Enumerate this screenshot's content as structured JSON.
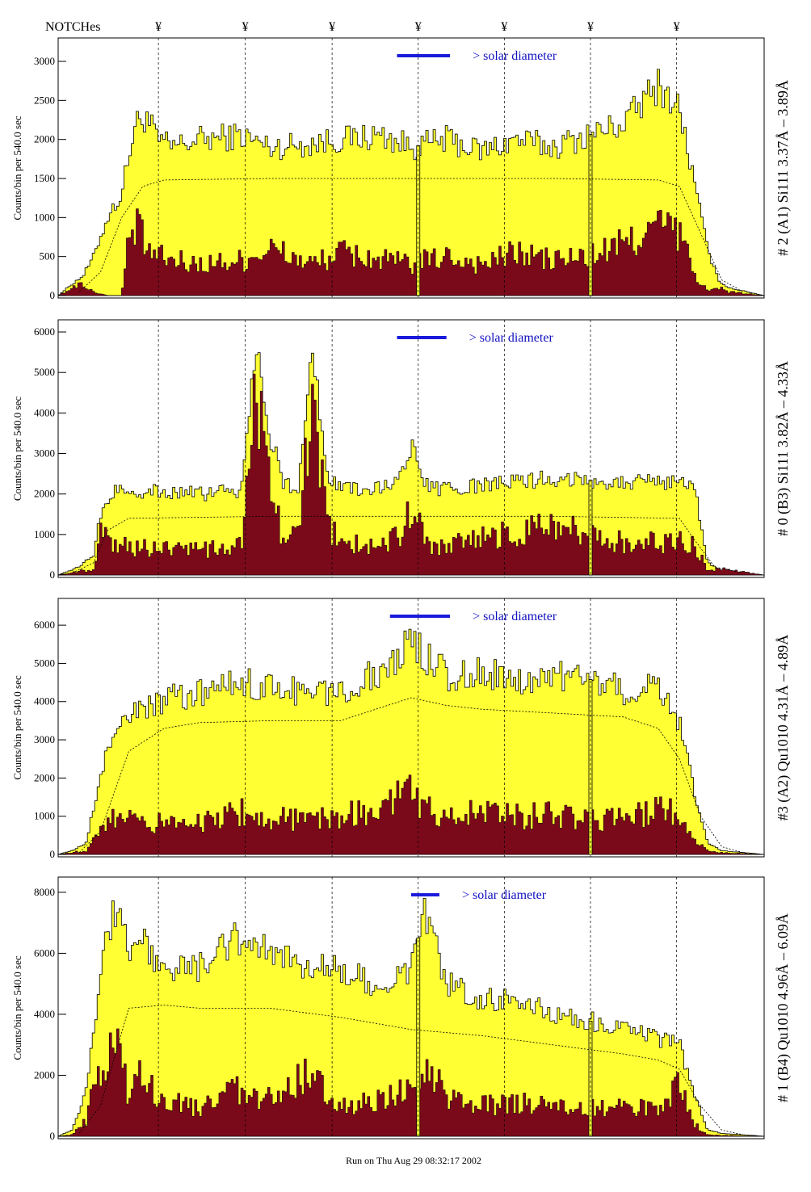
{
  "header": {
    "notches_label": "NOTCHes",
    "notch_glyph": "¥",
    "notch_x_fraction": [
      0.142,
      0.265,
      0.388,
      0.51,
      0.632,
      0.754,
      0.876
    ]
  },
  "footer": {
    "run_text": "Run on Thu Aug 29 08:32:17 2002"
  },
  "colors": {
    "total": "#ffff33",
    "dark": "#7a0a1a",
    "line": "#000000",
    "solar_bar": "#1a1adc",
    "solar_text": "#1010c0"
  },
  "chart_data": [
    {
      "type": "area",
      "panel": "A1",
      "right_label": "# 2 (A1) Si111  3.37Å – 3.89Å",
      "ylabel": "Counts/bin per    540.0 sec",
      "solar_label": "> solar diameter",
      "ylim": [
        0,
        3300
      ],
      "yticks": [
        0,
        500,
        1000,
        1500,
        2000,
        2500,
        3000
      ],
      "xlim": [
        0,
        1
      ],
      "solar_bar": [
        0.48,
        0.555
      ],
      "dip_x": [
        0.51,
        0.754
      ],
      "total": {
        "x": [
          0,
          0.02,
          0.035,
          0.05,
          0.07,
          0.09,
          0.1,
          0.11,
          0.125,
          0.14,
          0.16,
          0.2,
          0.26,
          0.3,
          0.36,
          0.4,
          0.46,
          0.5,
          0.55,
          0.6,
          0.65,
          0.7,
          0.75,
          0.8,
          0.85,
          0.88,
          0.9,
          0.92,
          0.935,
          0.95,
          1
        ],
        "y": [
          0,
          150,
          250,
          500,
          1000,
          1300,
          1800,
          2200,
          2300,
          2000,
          1900,
          2000,
          2050,
          1900,
          1950,
          2000,
          2050,
          1900,
          2000,
          1850,
          2000,
          1900,
          2050,
          2200,
          2700,
          2400,
          1500,
          600,
          200,
          100,
          0
        ]
      },
      "dark": {
        "x": [
          0,
          0.02,
          0.035,
          0.05,
          0.07,
          0.09,
          0.1,
          0.11,
          0.125,
          0.14,
          0.16,
          0.2,
          0.26,
          0.3,
          0.36,
          0.4,
          0.46,
          0.5,
          0.55,
          0.6,
          0.65,
          0.7,
          0.75,
          0.8,
          0.85,
          0.88,
          0.9,
          0.92,
          0.935,
          0.95,
          1
        ],
        "y": [
          0,
          100,
          150,
          50,
          0,
          0,
          700,
          900,
          600,
          500,
          450,
          400,
          450,
          600,
          400,
          550,
          450,
          400,
          500,
          400,
          550,
          450,
          500,
          650,
          900,
          800,
          300,
          50,
          100,
          50,
          0
        ]
      },
      "smooth": {
        "x": [
          0.03,
          0.06,
          0.09,
          0.12,
          0.15,
          0.3,
          0.5,
          0.7,
          0.85,
          0.88,
          0.91,
          0.94,
          0.97
        ],
        "y": [
          50,
          300,
          1000,
          1400,
          1480,
          1500,
          1500,
          1500,
          1480,
          1400,
          800,
          200,
          50
        ]
      }
    },
    {
      "type": "area",
      "panel": "B3",
      "right_label": "# 0 (B3) Si111  3.82Å – 4.33Å",
      "ylabel": "Counts/bin per    540.0 sec",
      "solar_label": "> solar diameter",
      "ylim": [
        0,
        6300
      ],
      "yticks": [
        0,
        1000,
        2000,
        3000,
        4000,
        5000,
        6000
      ],
      "xlim": [
        0,
        1
      ],
      "solar_bar": [
        0.48,
        0.55
      ],
      "dip_x": [
        0.754
      ],
      "total": {
        "x": [
          0,
          0.03,
          0.05,
          0.06,
          0.08,
          0.1,
          0.2,
          0.26,
          0.28,
          0.3,
          0.32,
          0.34,
          0.36,
          0.38,
          0.4,
          0.44,
          0.48,
          0.5,
          0.52,
          0.54,
          0.6,
          0.7,
          0.8,
          0.9,
          0.92,
          0.94,
          1
        ],
        "y": [
          0,
          200,
          500,
          1500,
          2100,
          2100,
          2000,
          2100,
          5700,
          3500,
          2200,
          2200,
          5500,
          2600,
          2100,
          2100,
          2300,
          3200,
          2200,
          2100,
          2200,
          2400,
          2300,
          2300,
          300,
          100,
          0
        ]
      },
      "dark": {
        "x": [
          0,
          0.03,
          0.05,
          0.06,
          0.08,
          0.1,
          0.2,
          0.26,
          0.28,
          0.3,
          0.32,
          0.34,
          0.36,
          0.38,
          0.4,
          0.44,
          0.48,
          0.5,
          0.52,
          0.54,
          0.6,
          0.7,
          0.8,
          0.9,
          0.92,
          0.94,
          1
        ],
        "y": [
          0,
          100,
          100,
          1000,
          700,
          700,
          600,
          700,
          4400,
          2000,
          900,
          1000,
          4300,
          1300,
          800,
          700,
          900,
          1700,
          800,
          700,
          900,
          1200,
          800,
          800,
          100,
          150,
          0
        ]
      },
      "smooth": {
        "x": [
          0.02,
          0.05,
          0.07,
          0.1,
          0.3,
          0.5,
          0.7,
          0.88,
          0.9,
          0.93,
          0.97
        ],
        "y": [
          50,
          300,
          1100,
          1400,
          1450,
          1450,
          1450,
          1400,
          900,
          200,
          50
        ]
      }
    },
    {
      "type": "area",
      "panel": "A2",
      "right_label": "#3 (A2) Qu1010  4.31Å – 4.89Å",
      "ylabel": "Counts/bin per    540.0 sec",
      "solar_label": "> solar diameter",
      "ylim": [
        0,
        6700
      ],
      "yticks": [
        0,
        1000,
        2000,
        3000,
        4000,
        5000,
        6000
      ],
      "xlim": [
        0,
        1
      ],
      "solar_bar": [
        0.47,
        0.555
      ],
      "dip_x": [
        0.754
      ],
      "total": {
        "x": [
          0,
          0.02,
          0.04,
          0.05,
          0.07,
          0.09,
          0.12,
          0.16,
          0.2,
          0.26,
          0.3,
          0.36,
          0.4,
          0.46,
          0.5,
          0.52,
          0.56,
          0.6,
          0.66,
          0.7,
          0.75,
          0.8,
          0.85,
          0.88,
          0.9,
          0.92,
          0.94,
          1
        ],
        "y": [
          0,
          100,
          300,
          1200,
          2800,
          3500,
          3800,
          4100,
          4200,
          4500,
          4400,
          4200,
          4300,
          4800,
          5600,
          5200,
          4600,
          4800,
          4500,
          4700,
          4600,
          4300,
          4400,
          3500,
          1700,
          300,
          100,
          0
        ]
      },
      "dark": {
        "x": [
          0,
          0.02,
          0.04,
          0.05,
          0.07,
          0.09,
          0.12,
          0.16,
          0.2,
          0.26,
          0.3,
          0.36,
          0.4,
          0.46,
          0.5,
          0.52,
          0.56,
          0.6,
          0.66,
          0.7,
          0.75,
          0.8,
          0.85,
          0.88,
          0.9,
          0.92,
          0.94,
          1
        ],
        "y": [
          0,
          50,
          100,
          500,
          1000,
          900,
          800,
          900,
          800,
          1100,
          950,
          900,
          1000,
          1200,
          1700,
          1200,
          1000,
          1100,
          1000,
          1050,
          950,
          900,
          1200,
          1000,
          500,
          80,
          50,
          0
        ]
      },
      "smooth": {
        "x": [
          0.03,
          0.06,
          0.1,
          0.15,
          0.2,
          0.3,
          0.4,
          0.5,
          0.55,
          0.6,
          0.7,
          0.8,
          0.85,
          0.88,
          0.91,
          0.94,
          0.97
        ],
        "y": [
          50,
          600,
          2700,
          3300,
          3450,
          3500,
          3500,
          4100,
          3900,
          3800,
          3700,
          3600,
          3300,
          2500,
          1000,
          200,
          50
        ]
      }
    },
    {
      "type": "area",
      "panel": "B4",
      "right_label": "# 1 (B4) Qu1010 4.96Å – 6.09Å",
      "ylabel": "Counts/bin per    540.0 sec",
      "solar_label": "> solar diameter",
      "ylim": [
        0,
        8500
      ],
      "yticks": [
        0,
        2000,
        4000,
        6000,
        8000
      ],
      "xlim": [
        0,
        1
      ],
      "solar_bar": [
        0.5,
        0.54
      ],
      "dip_x": [
        0.51,
        0.754
      ],
      "total": {
        "x": [
          0,
          0.02,
          0.04,
          0.06,
          0.08,
          0.1,
          0.12,
          0.14,
          0.2,
          0.25,
          0.3,
          0.35,
          0.4,
          0.45,
          0.5,
          0.52,
          0.55,
          0.6,
          0.65,
          0.7,
          0.75,
          0.8,
          0.85,
          0.88,
          0.9,
          0.92,
          0.94,
          1
        ],
        "y": [
          0,
          200,
          1500,
          5500,
          7500,
          6000,
          6500,
          5500,
          5500,
          6500,
          6000,
          5500,
          5500,
          5000,
          5500,
          7500,
          5000,
          4500,
          4500,
          4000,
          3800,
          3500,
          3200,
          3000,
          1500,
          200,
          100,
          0
        ]
      },
      "dark": {
        "x": [
          0,
          0.02,
          0.04,
          0.06,
          0.08,
          0.1,
          0.12,
          0.14,
          0.2,
          0.25,
          0.3,
          0.35,
          0.4,
          0.45,
          0.5,
          0.52,
          0.55,
          0.6,
          0.65,
          0.7,
          0.75,
          0.8,
          0.85,
          0.88,
          0.9,
          0.92,
          0.94,
          1
        ],
        "y": [
          0,
          50,
          500,
          2500,
          3000,
          1500,
          2000,
          1200,
          900,
          1500,
          1200,
          2000,
          1000,
          1100,
          1600,
          2500,
          1200,
          1000,
          1100,
          1000,
          1000,
          900,
          1000,
          1600,
          400,
          50,
          30,
          0
        ]
      },
      "smooth": {
        "x": [
          0.03,
          0.06,
          0.1,
          0.15,
          0.2,
          0.3,
          0.4,
          0.5,
          0.6,
          0.7,
          0.8,
          0.85,
          0.88,
          0.91,
          0.94,
          0.97
        ],
        "y": [
          100,
          1000,
          4200,
          4300,
          4200,
          4200,
          3900,
          3500,
          3300,
          3000,
          2700,
          2500,
          2200,
          1000,
          200,
          50
        ]
      }
    }
  ]
}
